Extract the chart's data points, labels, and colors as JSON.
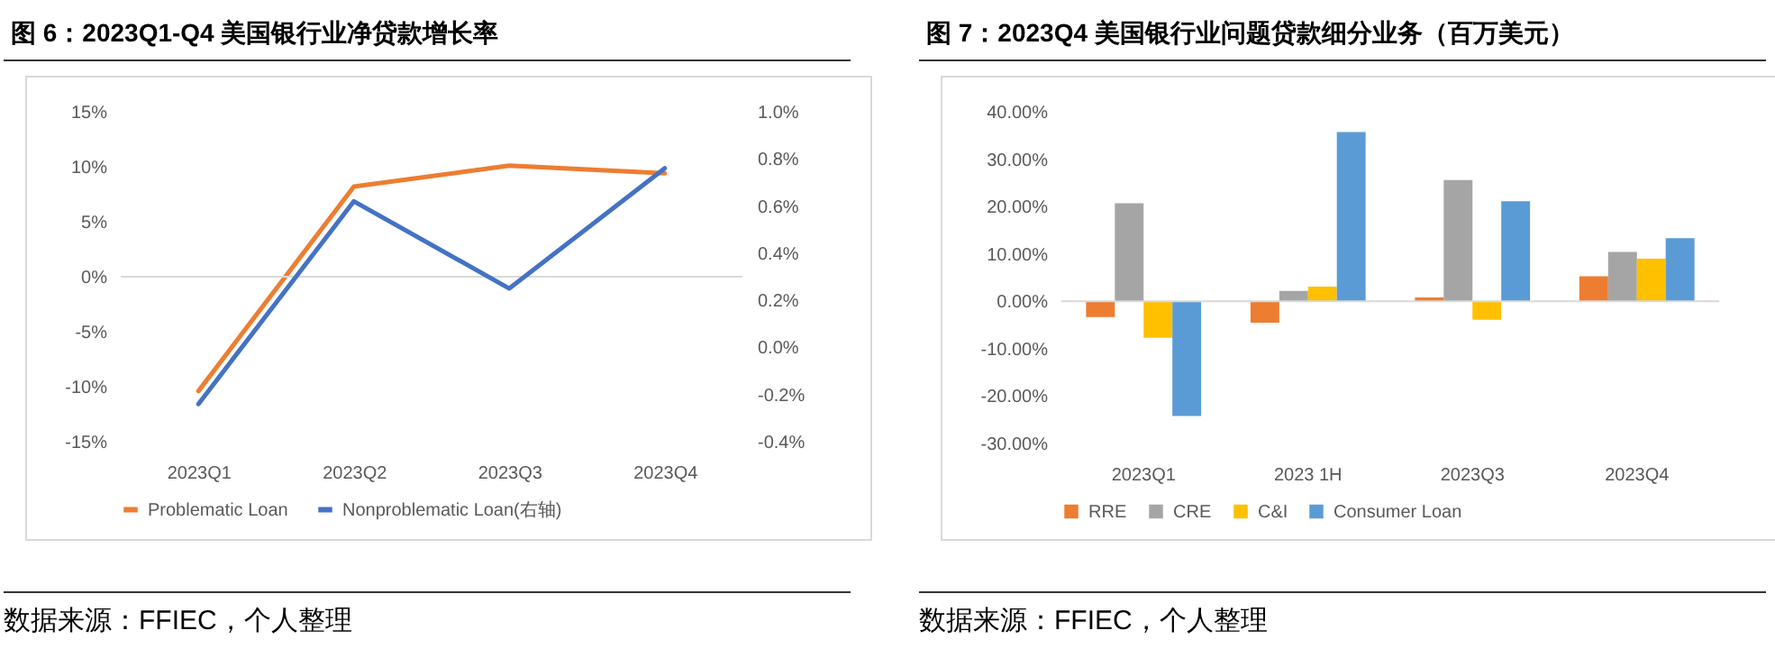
{
  "chart_data": [
    {
      "type": "line",
      "title": "图 6：2023Q1-Q4  美国银行业净贷款增长率",
      "categories": [
        "2023Q1",
        "2023Q2",
        "2023Q3",
        "2023Q4"
      ],
      "series": [
        {
          "name": "Problematic Loan",
          "color": "#ed7d31",
          "values": [
            -10.4,
            8.2,
            10.1,
            9.4
          ]
        },
        {
          "name": "Nonproblematic Loan(右轴)",
          "color": "#4472c4",
          "axis": "y2",
          "values": [
            -0.24,
            0.62,
            0.25,
            0.76
          ]
        }
      ],
      "ylim": [
        -15,
        15
      ],
      "yticks": [
        {
          "value": -15,
          "label": "-15%"
        },
        {
          "value": -10,
          "label": "-10%"
        },
        {
          "value": -5,
          "label": "-5%"
        },
        {
          "value": 0,
          "label": "0%"
        },
        {
          "value": 5,
          "label": "5%"
        },
        {
          "value": 10,
          "label": "10%"
        },
        {
          "value": 15,
          "label": "15%"
        }
      ],
      "y2lim": [
        -0.4,
        1.0
      ],
      "y2ticks": [
        {
          "value": -0.4,
          "label": "-0.4%"
        },
        {
          "value": -0.2,
          "label": "-0.2%"
        },
        {
          "value": 0,
          "label": "0.0%"
        },
        {
          "value": 0.2,
          "label": "0.2%"
        },
        {
          "value": 0.4,
          "label": "0.4%"
        },
        {
          "value": 0.6,
          "label": "0.6%"
        },
        {
          "value": 0.8,
          "label": "0.8%"
        },
        {
          "value": 1.0,
          "label": "1.0%"
        }
      ],
      "ref_lines": [
        {
          "axis": "y",
          "value": 0,
          "color": "#d9d9d9"
        }
      ],
      "legend": "bottom",
      "annotations": [
        "数据来源：FFIEC，个人整理"
      ]
    },
    {
      "type": "bar",
      "title": "图 7：2023Q4  美国银行业问题贷款细分业务（百万美元）",
      "categories": [
        "2023Q1",
        "2023 1H",
        "2023Q3",
        "2023Q4"
      ],
      "series": [
        {
          "name": "RRE",
          "color": "#ed7d31",
          "values": [
            -3.3,
            -4.5,
            0.8,
            5.3
          ]
        },
        {
          "name": "CRE",
          "color": "#a5a5a5",
          "values": [
            20.7,
            2.2,
            25.6,
            10.4
          ]
        },
        {
          "name": "C&I",
          "color": "#ffc000",
          "values": [
            -7.7,
            3.1,
            -3.9,
            9.0
          ]
        },
        {
          "name": "Consumer Loan",
          "color": "#5b9bd5",
          "values": [
            -24.2,
            35.7,
            21.1,
            13.3
          ]
        }
      ],
      "ylim": [
        -30,
        40
      ],
      "yticks": [
        {
          "value": -30,
          "label": "-30.00%"
        },
        {
          "value": -20,
          "label": "-20.00%"
        },
        {
          "value": -10,
          "label": "-10.00%"
        },
        {
          "value": 0,
          "label": "0.00%"
        },
        {
          "value": 10,
          "label": "10.00%"
        },
        {
          "value": 20,
          "label": "20.00%"
        },
        {
          "value": 30,
          "label": "30.00%"
        },
        {
          "value": 40,
          "label": "40.00%"
        }
      ],
      "ref_lines": [
        {
          "axis": "y",
          "value": 0,
          "color": "#d9d9d9"
        }
      ],
      "legend": "bottom",
      "annotations": [
        "数据来源：FFIEC，个人整理"
      ]
    }
  ]
}
